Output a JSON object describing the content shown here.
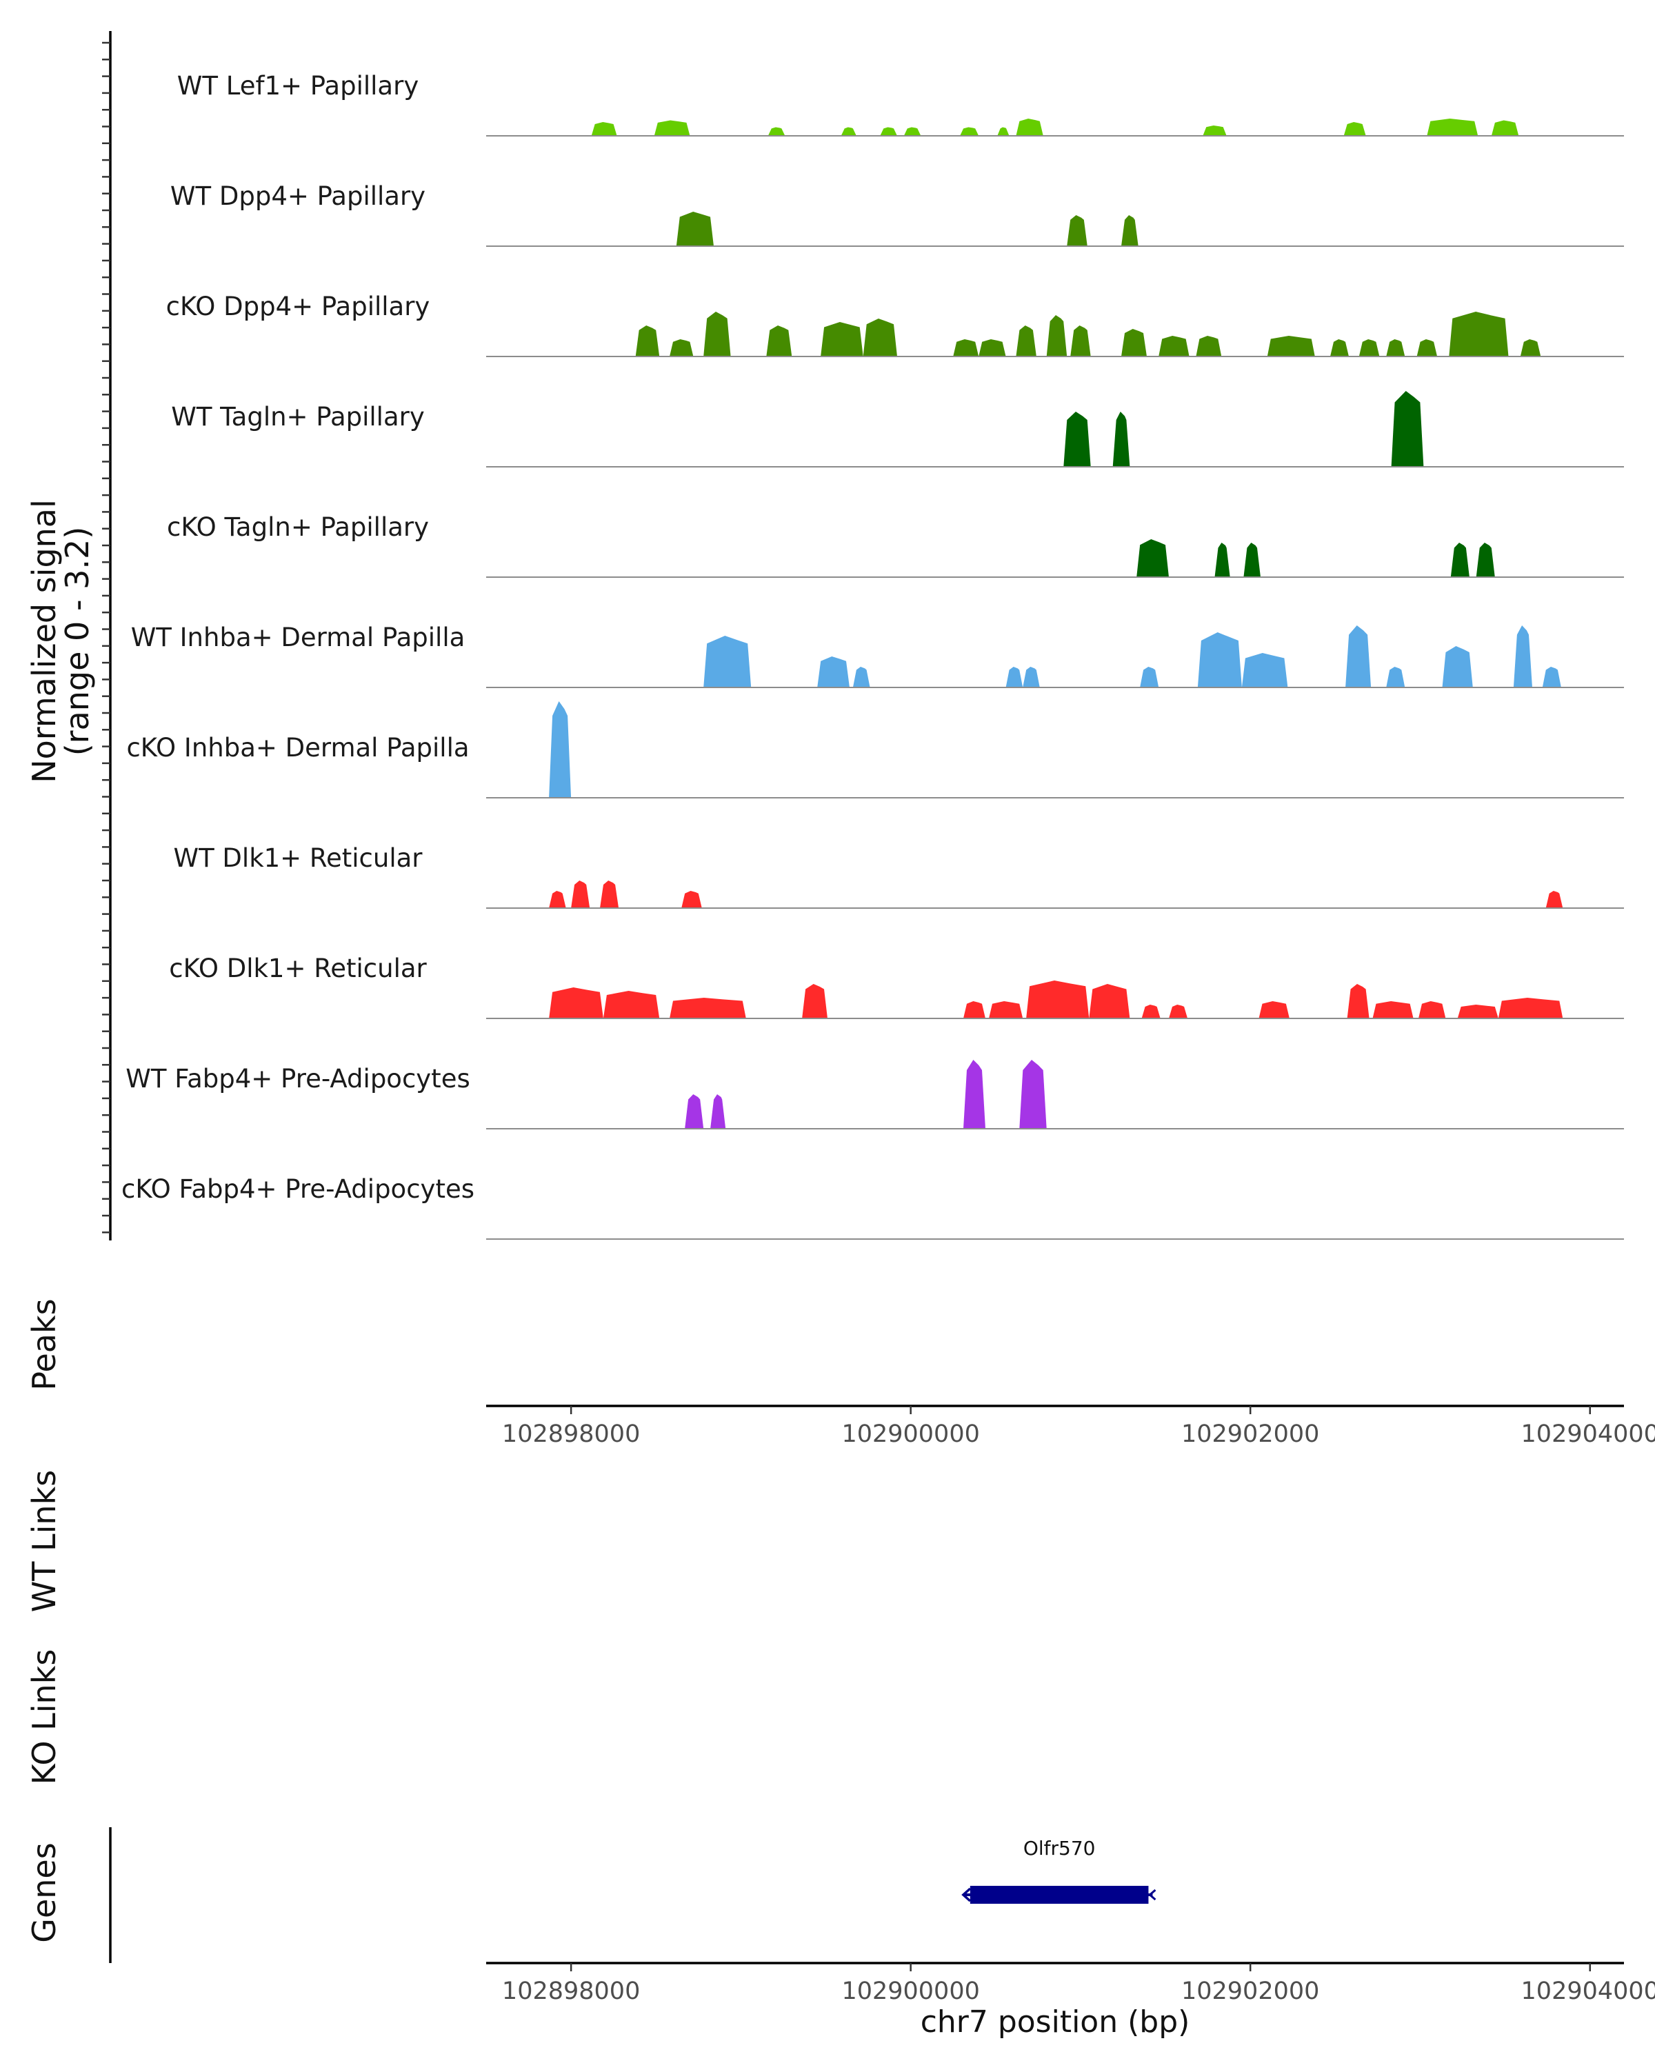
{
  "chart_data": {
    "type": "area",
    "title": "",
    "chromosome": "chr7",
    "xlabel": "chr7 position (bp)",
    "xlim": [
      102897500,
      102904200
    ],
    "x_ticks": [
      102898000,
      102900000,
      102902000,
      102904000
    ],
    "coverage": {
      "ylabel_line1": "Normalized signal",
      "ylabel_line2": "(range 0 - 3.2)",
      "ylim": [
        0,
        3.2
      ],
      "tracks": [
        {
          "label": "WT Lef1+ Papillary",
          "color": "#66cd00",
          "peaks": [
            [
              102898120,
              102898270,
              0.4
            ],
            [
              102898490,
              102898700,
              0.45
            ],
            [
              102899160,
              102899260,
              0.25
            ],
            [
              102899590,
              102899680,
              0.25
            ],
            [
              102899820,
              102899920,
              0.25
            ],
            [
              102899960,
              102900060,
              0.25
            ],
            [
              102900290,
              102900400,
              0.25
            ],
            [
              102900510,
              102900580,
              0.25
            ],
            [
              102900620,
              102900780,
              0.5
            ],
            [
              102901720,
              102901860,
              0.3
            ],
            [
              102902550,
              102902680,
              0.4
            ],
            [
              102903040,
              102903340,
              0.5
            ],
            [
              102903420,
              102903580,
              0.45
            ]
          ]
        },
        {
          "label": "WT Dpp4+ Papillary",
          "color": "#458b00",
          "peaks": [
            [
              102898620,
              102898840,
              1.0
            ],
            [
              102900920,
              102901040,
              0.9
            ],
            [
              102901240,
              102901340,
              0.9
            ]
          ]
        },
        {
          "label": "cKO Dpp4+ Papillary",
          "color": "#458b00",
          "peaks": [
            [
              102898380,
              102898520,
              0.9
            ],
            [
              102898580,
              102898720,
              0.5
            ],
            [
              102898780,
              102898940,
              1.3
            ],
            [
              102899150,
              102899300,
              0.9
            ],
            [
              102899470,
              102899720,
              1.0
            ],
            [
              102899720,
              102899920,
              1.1
            ],
            [
              102900250,
              102900400,
              0.5
            ],
            [
              102900400,
              102900560,
              0.5
            ],
            [
              102900620,
              102900740,
              0.9
            ],
            [
              102900800,
              102900920,
              1.2
            ],
            [
              102900940,
              102901060,
              0.9
            ],
            [
              102901240,
              102901390,
              0.8
            ],
            [
              102901460,
              102901640,
              0.6
            ],
            [
              102901680,
              102901830,
              0.6
            ],
            [
              102902100,
              102902380,
              0.6
            ],
            [
              102902470,
              102902580,
              0.5
            ],
            [
              102902640,
              102902760,
              0.5
            ],
            [
              102902800,
              102902910,
              0.5
            ],
            [
              102902980,
              102903100,
              0.5
            ],
            [
              102903170,
              102903520,
              1.3
            ],
            [
              102903590,
              102903710,
              0.5
            ]
          ]
        },
        {
          "label": "WT Tagln+ Papillary",
          "color": "#006400",
          "peaks": [
            [
              102900900,
              102901060,
              1.6
            ],
            [
              102901190,
              102901290,
              1.6
            ],
            [
              102902830,
              102903020,
              2.2
            ]
          ]
        },
        {
          "label": "cKO Tagln+ Papillary",
          "color": "#006400",
          "peaks": [
            [
              102901330,
              102901520,
              1.1
            ],
            [
              102901790,
              102901880,
              1.0
            ],
            [
              102901960,
              102902060,
              1.0
            ],
            [
              102903180,
              102903290,
              1.0
            ],
            [
              102903330,
              102903440,
              1.0
            ]
          ]
        },
        {
          "label": "WT Inhba+ Dermal Papilla",
          "color": "#5aaae6",
          "peaks": [
            [
              102898780,
              102899060,
              1.5
            ],
            [
              102899450,
              102899640,
              0.9
            ],
            [
              102899660,
              102899760,
              0.6
            ],
            [
              102900560,
              102900660,
              0.6
            ],
            [
              102900660,
              102900760,
              0.6
            ],
            [
              102901350,
              102901460,
              0.6
            ],
            [
              102901690,
              102901950,
              1.6
            ],
            [
              102901950,
              102902220,
              1.0
            ],
            [
              102902560,
              102902710,
              1.8
            ],
            [
              102902800,
              102902910,
              0.6
            ],
            [
              102903130,
              102903310,
              1.2
            ],
            [
              102903550,
              102903660,
              1.8
            ],
            [
              102903720,
              102903830,
              0.6
            ]
          ]
        },
        {
          "label": "cKO Inhba+ Dermal Papilla",
          "color": "#5aaae6",
          "peaks": [
            [
              102897870,
              102898000,
              2.8
            ]
          ]
        },
        {
          "label": "WT Dlk1+ Reticular",
          "color": "#ff2a2a",
          "peaks": [
            [
              102897870,
              102897970,
              0.5
            ],
            [
              102898000,
              102898110,
              0.8
            ],
            [
              102898170,
              102898280,
              0.8
            ],
            [
              102898650,
              102898770,
              0.5
            ],
            [
              102903740,
              102903840,
              0.5
            ]
          ]
        },
        {
          "label": "cKO Dlk1+ Reticular",
          "color": "#ff2a2a",
          "peaks": [
            [
              102897870,
              102898190,
              0.9
            ],
            [
              102898190,
              102898520,
              0.8
            ],
            [
              102898580,
              102899030,
              0.6
            ],
            [
              102899360,
              102899510,
              1.0
            ],
            [
              102900310,
              102900440,
              0.5
            ],
            [
              102900460,
              102900660,
              0.5
            ],
            [
              102900680,
              102901050,
              1.1
            ],
            [
              102901050,
              102901290,
              1.0
            ],
            [
              102901360,
              102901470,
              0.4
            ],
            [
              102901520,
              102901630,
              0.4
            ],
            [
              102902050,
              102902230,
              0.5
            ],
            [
              102902570,
              102902700,
              1.0
            ],
            [
              102902720,
              102902960,
              0.5
            ],
            [
              102902990,
              102903150,
              0.5
            ],
            [
              102903220,
              102903460,
              0.4
            ],
            [
              102903460,
              102903840,
              0.6
            ]
          ]
        },
        {
          "label": "WT Fabp4+ Pre-Adipocytes",
          "color": "#a535e6",
          "peaks": [
            [
              102898670,
              102898780,
              1.0
            ],
            [
              102898820,
              102898910,
              1.0
            ],
            [
              102900310,
              102900440,
              2.0
            ],
            [
              102900640,
              102900800,
              2.0
            ]
          ]
        },
        {
          "label": "cKO Fabp4+ Pre-Adipocytes",
          "color": "#a535e6",
          "peaks": []
        }
      ]
    },
    "peaks_track": {
      "label": "Peaks",
      "regions": []
    },
    "links": [
      {
        "label": "WT Links",
        "links": []
      },
      {
        "label": "KO Links",
        "links": []
      }
    ],
    "genes": {
      "label": "Genes",
      "color": "#00008b",
      "items": [
        {
          "name": "Olfr570",
          "start": 102900350,
          "end": 102901400,
          "strand": "-"
        }
      ]
    }
  }
}
